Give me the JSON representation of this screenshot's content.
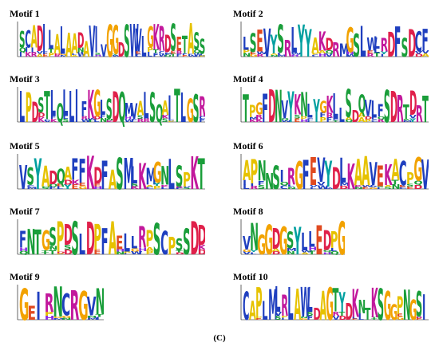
{
  "figure": {
    "caption": "(C)"
  },
  "colors": {
    "A": "#e6c200",
    "C": "#1f3fbf",
    "D": "#e0204a",
    "E": "#e04a20",
    "F": "#1f3fbf",
    "G": "#f2a200",
    "H": "#8a2be2",
    "I": "#1f3fbf",
    "K": "#c2189c",
    "L": "#1f3fbf",
    "M": "#1f3fbf",
    "N": "#1a9e3a",
    "P": "#e6c200",
    "Q": "#1a9e3a",
    "R": "#c2189c",
    "S": "#1a9e3a",
    "T": "#1a9e3a",
    "V": "#1f3fbf",
    "W": "#1f3fbf",
    "Y": "#00a0a0"
  },
  "motifs": [
    {
      "title": "Motif 1",
      "consensus": "SCADILALAADAVIVGGDSWVLGKRDSETASS"
    },
    {
      "title": "Motif 2",
      "consensus": "LSEVYSRLYYAKDRMGSLWLRDFSDCF"
    },
    {
      "title": "Motif 3",
      "consensus": "LPDSTLQLLIFKGLSDQMVALSQAITLGSR"
    },
    {
      "title": "Motif 4",
      "consensus": "TPGFDNVYKNLYGKLLSDQVLFSDRTDRT"
    },
    {
      "title": "Motif 5",
      "consensus": "VSYADQAFFKDFASMLKMGNLSPKT"
    },
    {
      "title": "Motif 6",
      "consensus": "APNNSIRGFEVYDLKAAVEKACPGV"
    },
    {
      "title": "Motif 7",
      "consensus": "FNTGSPDSLDPFAELLRPSCPSSDD"
    },
    {
      "title": "Motif 8",
      "consensus": "VNGGDGSYLLEDPG"
    },
    {
      "title": "Motif 9",
      "consensus": "GEIRNCRGVN"
    },
    {
      "title": "Motif 10",
      "consensus": "CAPLMLRLAWLDAGTYDKNTKSGGPNGSI"
    }
  ]
}
